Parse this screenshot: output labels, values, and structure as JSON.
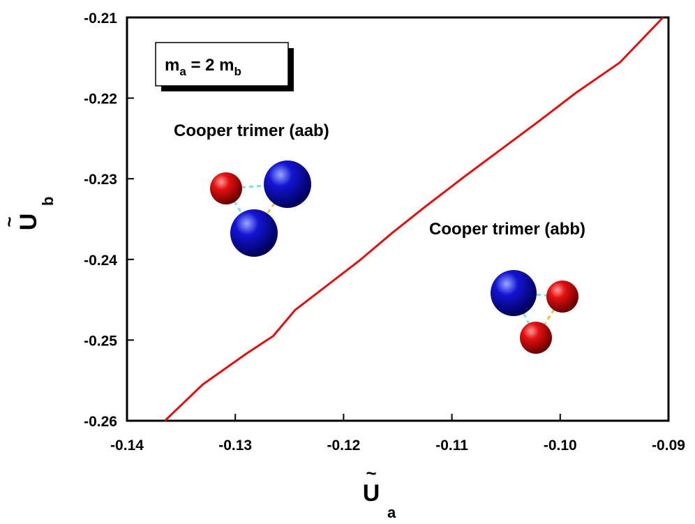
{
  "chart_data": {
    "type": "line",
    "title": "",
    "xlabel": "U",
    "xlabel_sub": "a",
    "ylabel": "U",
    "ylabel_sub": "b",
    "xlim": [
      -0.14,
      -0.09
    ],
    "ylim": [
      -0.26,
      -0.21
    ],
    "xticks": [
      -0.14,
      -0.13,
      -0.12,
      -0.11,
      -0.1,
      -0.09
    ],
    "xtick_labels": [
      "-0.14",
      "-0.13",
      "-0.12",
      "-0.11",
      "-0.10",
      "-0.09"
    ],
    "yticks": [
      -0.26,
      -0.25,
      -0.24,
      -0.23,
      -0.22,
      -0.21
    ],
    "ytick_labels": [
      "-0.26",
      "-0.25",
      "-0.24",
      "-0.23",
      "-0.22",
      "-0.21"
    ],
    "grid": false,
    "series": [
      {
        "color": "#e01010",
        "x": [
          -0.1365,
          -0.133,
          -0.129,
          -0.1265,
          -0.1245,
          -0.1215,
          -0.1185,
          -0.1155,
          -0.1125,
          -0.109,
          -0.1055,
          -0.102,
          -0.0985,
          -0.0945,
          -0.0905
        ],
        "y": [
          -0.26,
          -0.2555,
          -0.2517,
          -0.2495,
          -0.2463,
          -0.2432,
          -0.2401,
          -0.2367,
          -0.2335,
          -0.2299,
          -0.2264,
          -0.2229,
          -0.2193,
          -0.2156,
          -0.21
        ]
      }
    ],
    "annotations": {
      "mass_box": {
        "m": "m",
        "sub_a": "a",
        "mid": " = 2 m",
        "sub_b": "b"
      },
      "region_aab": "Cooper trimer (aab)",
      "region_abb": "Cooper trimer (abb)"
    }
  },
  "colors": {
    "line": "#e01010",
    "atom_a": "#e00000",
    "atom_b": "#1010d0",
    "bond_cyan": "#7fe0e0",
    "bond_yellow": "#e8c050"
  }
}
